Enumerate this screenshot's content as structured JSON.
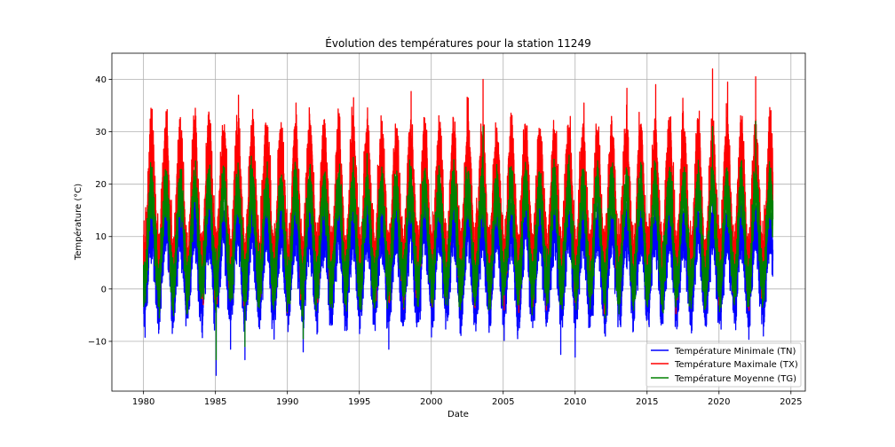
{
  "chart_data": {
    "type": "line",
    "title": "Évolution des températures pour la station 11249",
    "xlabel": "Date",
    "ylabel": "Température (°C)",
    "xlim": [
      1977.8,
      2026.0
    ],
    "ylim": [
      -19.5,
      45.0
    ],
    "x_ticks": [
      1980,
      1985,
      1990,
      1995,
      2000,
      2005,
      2010,
      2015,
      2020,
      2025
    ],
    "y_ticks": [
      -10,
      0,
      10,
      20,
      30,
      40
    ],
    "grid": true,
    "legend_position": "lower right",
    "x_start": 1980.0,
    "x_end": 2023.75,
    "series": [
      {
        "name": "Température Minimale (TN)",
        "color": "#0000ff",
        "seasonal_mean": 5.0,
        "seasonal_amplitude": 7.0,
        "noise": 4.0,
        "extremes": [
          {
            "x": 1985.05,
            "y": -16.5
          },
          {
            "x": 1986.05,
            "y": -11.5
          },
          {
            "x": 1987.05,
            "y": -13.5
          },
          {
            "x": 1991.1,
            "y": -12.0
          },
          {
            "x": 1997.05,
            "y": -11.5
          },
          {
            "x": 2009.0,
            "y": -12.5
          },
          {
            "x": 2010.0,
            "y": -13.0
          },
          {
            "x": 1982.0,
            "y": -8.5
          },
          {
            "x": 2003.1,
            "y": -8.0
          },
          {
            "x": 2012.1,
            "y": -9.0
          }
        ]
      },
      {
        "name": "Température Maximale (TX)",
        "color": "#ff0000",
        "seasonal_mean": 15.5,
        "seasonal_amplitude": 11.0,
        "noise": 5.0,
        "extremes": [
          {
            "x": 1983.6,
            "y": 34.5
          },
          {
            "x": 1986.6,
            "y": 37.0
          },
          {
            "x": 1990.6,
            "y": 35.5
          },
          {
            "x": 1994.6,
            "y": 36.5
          },
          {
            "x": 1998.6,
            "y": 37.7
          },
          {
            "x": 2003.6,
            "y": 40.0
          },
          {
            "x": 2013.6,
            "y": 38.3
          },
          {
            "x": 2015.6,
            "y": 39.0
          },
          {
            "x": 2019.55,
            "y": 42.0
          },
          {
            "x": 2020.6,
            "y": 39.5
          },
          {
            "x": 2022.55,
            "y": 40.5
          }
        ]
      },
      {
        "name": "Température Moyenne (TG)",
        "color": "#008000",
        "seasonal_mean": 10.0,
        "seasonal_amplitude": 9.0,
        "noise": 3.5,
        "extremes": [
          {
            "x": 1985.05,
            "y": -13.5
          },
          {
            "x": 1987.05,
            "y": -11.0
          },
          {
            "x": 1991.1,
            "y": -9.5
          },
          {
            "x": 2003.6,
            "y": 31.0
          },
          {
            "x": 2019.55,
            "y": 31.0
          },
          {
            "x": 2022.55,
            "y": 32.0
          }
        ]
      }
    ]
  }
}
